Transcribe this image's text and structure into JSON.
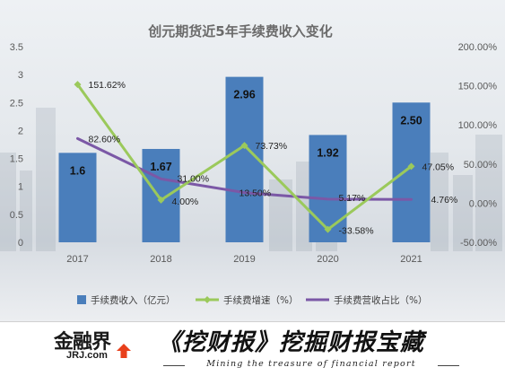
{
  "chart_data": {
    "type": "bar+line",
    "title": "创元期货近5年手续费收入变化",
    "categories": [
      "2017",
      "2018",
      "2019",
      "2020",
      "2021"
    ],
    "left_axis": {
      "ylim": [
        0,
        3.5
      ],
      "ticks": [
        "0",
        "0.5",
        "1",
        "1.5",
        "2",
        "2.5",
        "3",
        "3.5"
      ]
    },
    "right_axis": {
      "ylim": [
        -50,
        200
      ],
      "ticks": [
        "-50.00%",
        "0.00%",
        "50.00%",
        "100.00%",
        "150.00%",
        "200.00%"
      ]
    },
    "series": [
      {
        "name": "手续费收入（亿元）",
        "type": "bar",
        "axis": "left",
        "color": "#4a7ebb",
        "values": [
          1.6,
          1.67,
          2.96,
          1.92,
          2.5
        ],
        "labels": [
          "1.6",
          "1.67",
          "2.96",
          "1.92",
          "2.50"
        ]
      },
      {
        "name": "手续费增速（%）",
        "type": "line",
        "axis": "right",
        "color": "#9bc95b",
        "values": [
          151.62,
          4.0,
          73.73,
          -33.58,
          47.05
        ],
        "labels": [
          "151.62%",
          "4.00%",
          "73.73%",
          "-33.58%",
          "47.05%"
        ]
      },
      {
        "name": "手续费营收占比（%）",
        "type": "line",
        "axis": "right",
        "color": "#7b58a6",
        "values": [
          82.6,
          31.0,
          13.5,
          5.17,
          4.76
        ],
        "labels": [
          "82.60%",
          "31.00%",
          "13.50%",
          "5.17%",
          "4.76%"
        ]
      }
    ],
    "legend": "bottom",
    "grid": false
  },
  "banner": {
    "logo_main": "金融界",
    "logo_sub": "JRJ.com",
    "slogan": "《挖财报》挖掘财报宝藏",
    "tagline": "Mining the treasure of financial report"
  },
  "colors": {
    "bar": "#4a7ebb",
    "growth_line": "#9bc95b",
    "share_line": "#7b58a6",
    "logo_accent": "#e8401c"
  }
}
